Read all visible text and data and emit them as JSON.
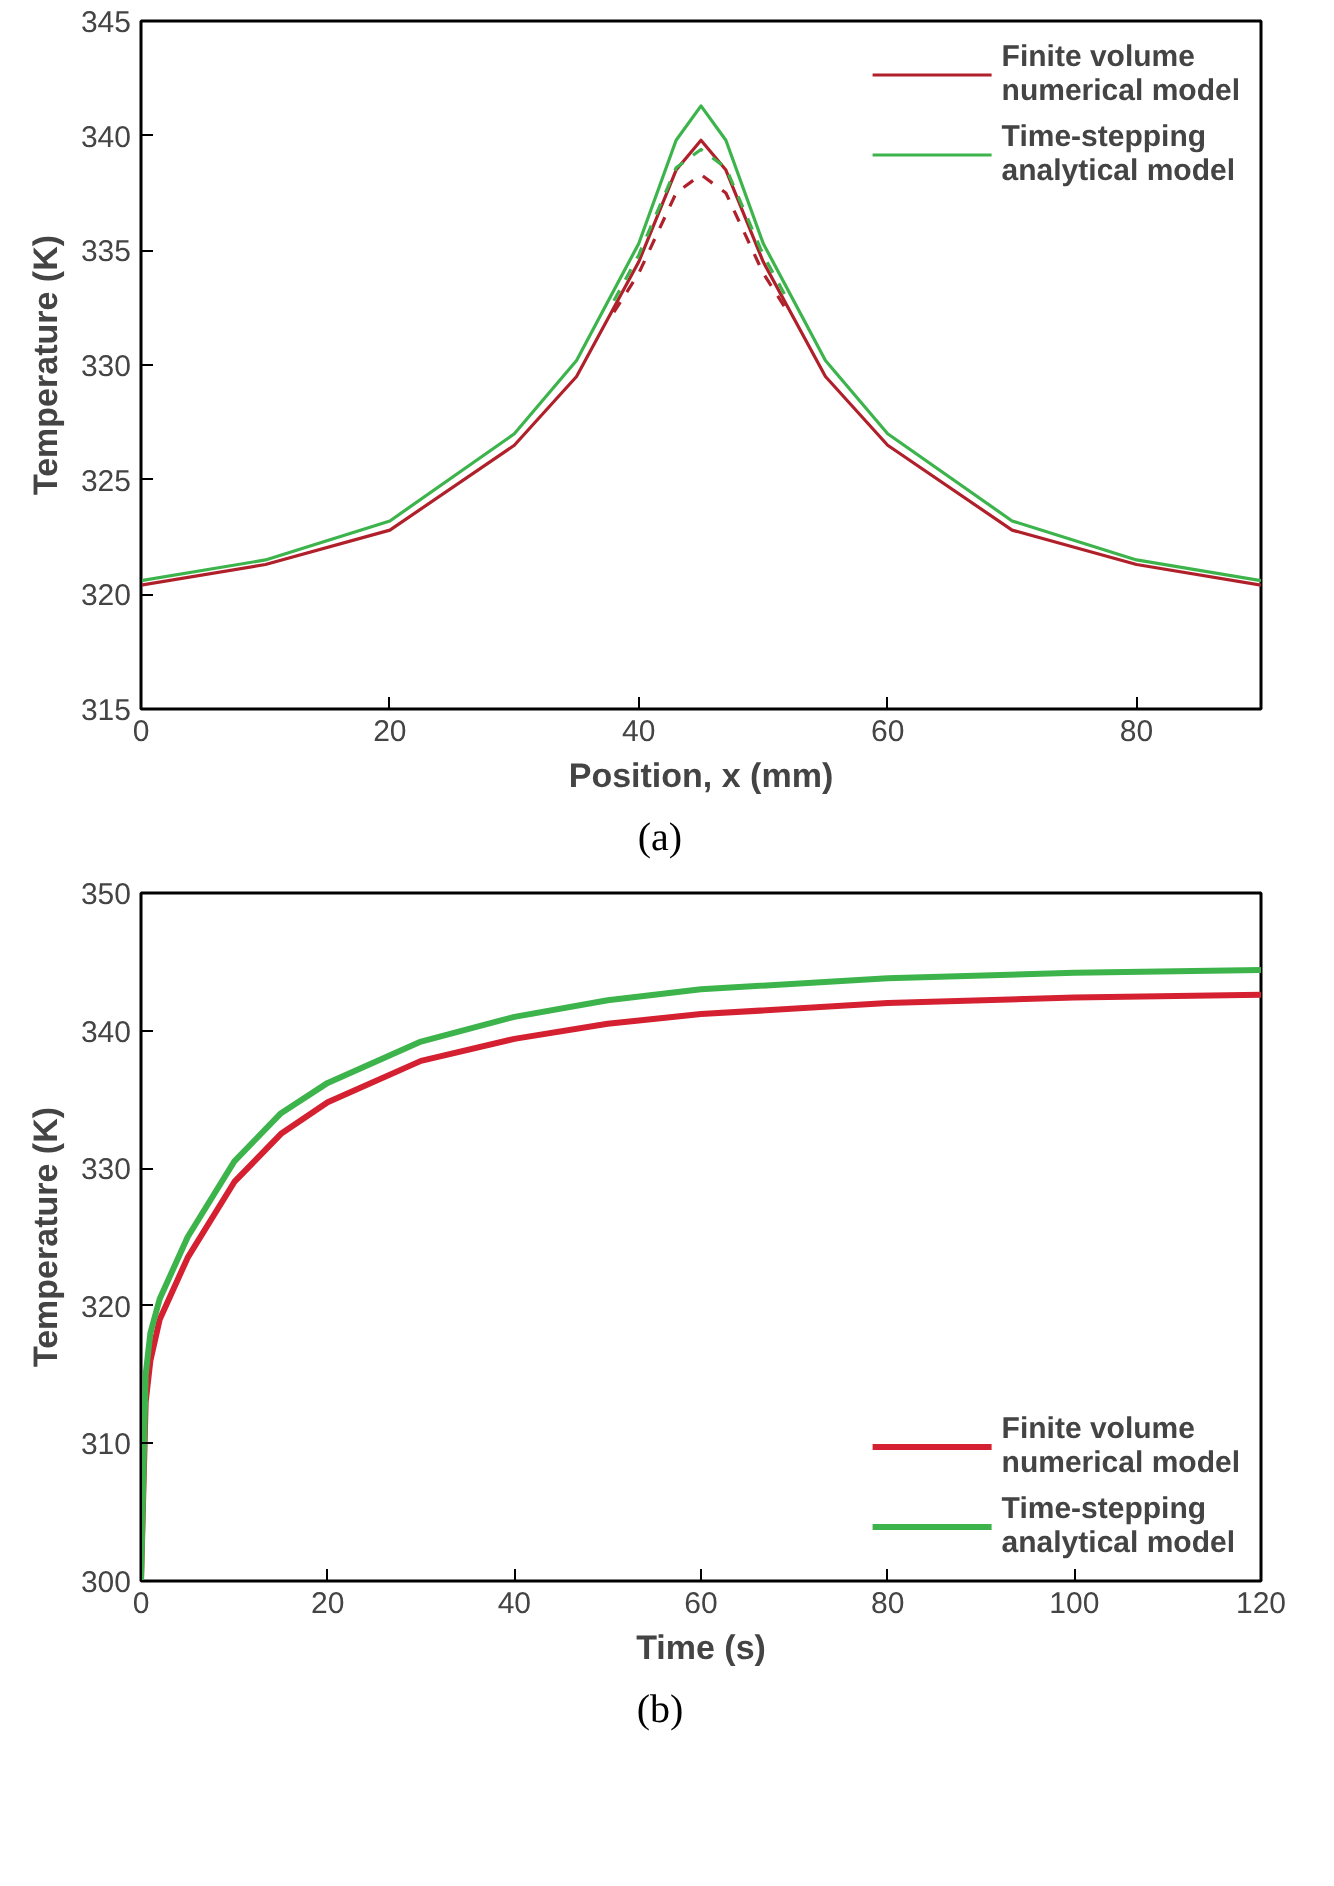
{
  "chart_data": [
    {
      "type": "line",
      "xlabel": "Position, x (mm)",
      "ylabel": "Temperature (K)",
      "xlim": [
        0,
        90
      ],
      "ylim": [
        315,
        345
      ],
      "xticks": [
        0,
        20,
        40,
        60,
        80
      ],
      "yticks": [
        315,
        320,
        325,
        330,
        335,
        340,
        345
      ],
      "grid": false,
      "legend": "top right",
      "annotations": [
        "(a)"
      ],
      "series": [
        {
          "name": "Finite volume\nnumerical model",
          "color": "#b0202a",
          "x": [
            0,
            10,
            20,
            30,
            35,
            40,
            43,
            45,
            47,
            50,
            55,
            60,
            70,
            80,
            90
          ],
          "values": [
            320.4,
            321.3,
            322.8,
            326.5,
            329.5,
            334.5,
            338.5,
            339.8,
            338.5,
            334.5,
            329.5,
            326.5,
            322.8,
            321.3,
            320.4
          ]
        },
        {
          "name": "Time-stepping\nanalytical model",
          "color": "#3cb44b",
          "x": [
            0,
            10,
            20,
            30,
            35,
            40,
            43,
            45,
            47,
            50,
            55,
            60,
            70,
            80,
            90
          ],
          "values": [
            320.6,
            321.5,
            323.2,
            327.0,
            330.2,
            335.3,
            339.8,
            341.3,
            339.8,
            335.3,
            330.2,
            327.0,
            323.2,
            321.5,
            320.6
          ]
        },
        {
          "color": "#b0202a",
          "line_style": "dashed",
          "x": [
            38,
            40,
            43,
            45,
            47,
            50,
            52
          ],
          "values": [
            332.3,
            334.0,
            337.5,
            338.3,
            337.5,
            334.0,
            332.3
          ]
        },
        {
          "color": "#3cb44b",
          "line_style": "dashed",
          "x": [
            38,
            40,
            43,
            45,
            47,
            50,
            52
          ],
          "values": [
            332.8,
            334.8,
            338.6,
            339.4,
            338.6,
            334.8,
            332.8
          ]
        }
      ]
    },
    {
      "type": "line",
      "xlabel": "Time (s)",
      "ylabel": "Temperature (K)",
      "xlim": [
        0,
        120
      ],
      "ylim": [
        300,
        350
      ],
      "xticks": [
        0,
        20,
        40,
        60,
        80,
        100,
        120
      ],
      "yticks": [
        300,
        310,
        320,
        330,
        340,
        350
      ],
      "grid": false,
      "legend": "bottom right",
      "annotations": [
        "(b)"
      ],
      "series": [
        {
          "name": "Finite volume\nnumerical model",
          "color": "#d42030",
          "x": [
            0,
            0.5,
            1,
            2,
            5,
            10,
            15,
            20,
            30,
            40,
            50,
            60,
            80,
            100,
            120
          ],
          "values": [
            300,
            313,
            316,
            319,
            323.5,
            329,
            332.5,
            334.8,
            337.8,
            339.4,
            340.5,
            341.2,
            342,
            342.4,
            342.6
          ]
        },
        {
          "name": "Time-stepping\nanalytical model",
          "color": "#3cb44b",
          "x": [
            0,
            0.5,
            1,
            2,
            5,
            10,
            15,
            20,
            30,
            40,
            50,
            60,
            80,
            100,
            120
          ],
          "values": [
            300,
            315,
            318,
            320.5,
            325,
            330.5,
            334,
            336.2,
            339.2,
            341,
            342.2,
            343,
            343.8,
            344.2,
            344.4
          ]
        }
      ]
    }
  ]
}
